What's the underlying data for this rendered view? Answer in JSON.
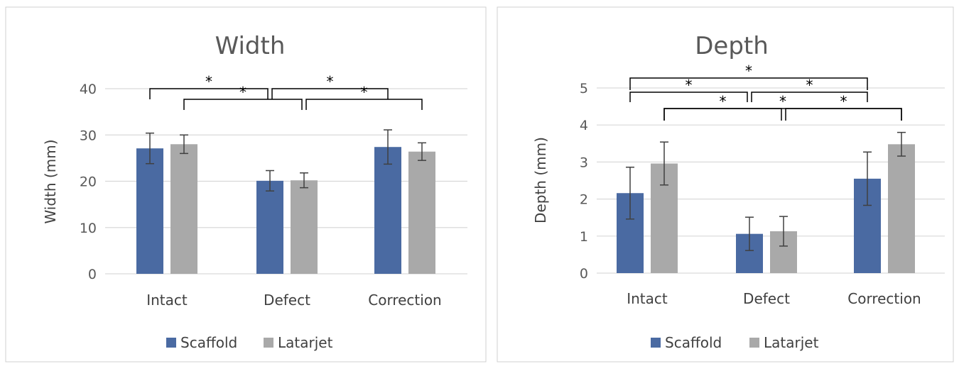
{
  "chart_data": [
    {
      "type": "bar",
      "title": "Width",
      "ylabel": "Width (mm)",
      "xlabel": "",
      "ylim": [
        0,
        40
      ],
      "yticks": [
        "0",
        "10",
        "20",
        "30",
        "40"
      ],
      "categories": [
        "Intact",
        "Defect",
        "Correction"
      ],
      "series": [
        {
          "name": "Scaffold",
          "values": [
            27.1,
            20.1,
            27.4
          ],
          "errors": [
            3.3,
            2.2,
            3.7
          ]
        },
        {
          "name": "Latarjet",
          "values": [
            28.0,
            20.2,
            26.4
          ],
          "errors": [
            2.0,
            1.6,
            1.9
          ]
        }
      ],
      "grid": true,
      "legend": "bottom",
      "significance": [
        {
          "from": "Intact.Scaffold",
          "to": "Defect.Scaffold",
          "label": "*"
        },
        {
          "from": "Defect.Scaffold",
          "to": "Correction.Scaffold",
          "label": "*"
        },
        {
          "from": "Intact.Latarjet",
          "to": "Defect.Latarjet",
          "label": "*"
        },
        {
          "from": "Defect.Latarjet",
          "to": "Correction.Latarjet",
          "label": "*"
        }
      ]
    },
    {
      "type": "bar",
      "title": "Depth",
      "ylabel": "Depth (mm)",
      "xlabel": "",
      "ylim": [
        0,
        5
      ],
      "yticks": [
        "0",
        "1",
        "2",
        "3",
        "4",
        "5"
      ],
      "categories": [
        "Intact",
        "Defect",
        "Correction"
      ],
      "series": [
        {
          "name": "Scaffold",
          "values": [
            2.16,
            1.06,
            2.55
          ],
          "errors": [
            0.7,
            0.45,
            0.72
          ]
        },
        {
          "name": "Latarjet",
          "values": [
            2.96,
            1.13,
            3.48
          ],
          "errors": [
            0.58,
            0.4,
            0.32
          ]
        }
      ],
      "grid": true,
      "legend": "bottom",
      "significance": [
        {
          "from": "Intact.Scaffold",
          "to": "Correction.Scaffold",
          "label": "*"
        },
        {
          "from": "Intact.Scaffold",
          "to": "Defect.Scaffold",
          "label": "*"
        },
        {
          "from": "Defect.Scaffold",
          "to": "Correction.Scaffold",
          "label": "*"
        },
        {
          "from": "Intact.Latarjet",
          "to": "Correction.Latarjet",
          "label": "*"
        },
        {
          "from": "Intact.Latarjet",
          "to": "Defect.Latarjet",
          "label": "*"
        },
        {
          "from": "Defect.Latarjet",
          "to": "Correction.Latarjet",
          "label": "*"
        }
      ]
    }
  ],
  "colors": {
    "Scaffold": "#4a6aa2",
    "Latarjet": "#a9a9a9",
    "grid": "#d9d9d9",
    "error": "#404040",
    "bracket": "#000000",
    "border": "#d0d0d0"
  }
}
